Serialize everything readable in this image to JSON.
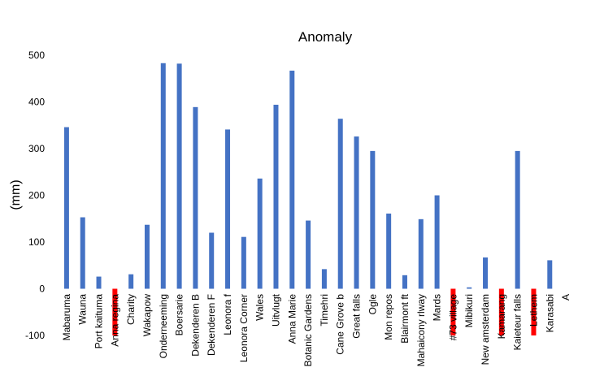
{
  "chart_data": {
    "type": "bar",
    "title": "Anomaly",
    "y_label": "(mm)",
    "categories": [
      "Mabaruma",
      "Wauna",
      "Port kaituma",
      "Anna regina",
      "Charity",
      "Wakapow",
      "Onderneeming",
      "Boersarie",
      "Dekenderen B",
      "Dekenderen F",
      "Leonora  f",
      "Leonora  Corner",
      "Wales",
      "Uitvlugt",
      "Anna Marie",
      "Botanic Gardens",
      "Timehri",
      "Cane Grove b",
      "Great falls",
      "Ogle",
      "Mon repos",
      "Blairmont ft",
      "Mahaicony rlway",
      "Mards",
      "#73 village",
      "Mibikuri",
      "New amsterdam",
      "Kamarang",
      "Kaieteur falls",
      "Lethem",
      "Karasabi",
      "A"
    ],
    "values": [
      346,
      153,
      26,
      -100,
      31,
      137,
      483,
      482,
      389,
      120,
      341,
      111,
      236,
      394,
      467,
      146,
      42,
      364,
      326,
      295,
      161,
      29,
      149,
      200,
      -100,
      3,
      67,
      -100,
      295,
      -100,
      61,
      null
    ],
    "colors": [
      "#4472c4",
      "#4472c4",
      "#4472c4",
      "#ff0000",
      "#4472c4",
      "#4472c4",
      "#4472c4",
      "#4472c4",
      "#4472c4",
      "#4472c4",
      "#4472c4",
      "#4472c4",
      "#4472c4",
      "#4472c4",
      "#4472c4",
      "#4472c4",
      "#4472c4",
      "#4472c4",
      "#4472c4",
      "#4472c4",
      "#4472c4",
      "#4472c4",
      "#4472c4",
      "#4472c4",
      "#ff0000",
      "#4472c4",
      "#4472c4",
      "#ff0000",
      "#4472c4",
      "#ff0000",
      "#4472c4",
      "#4472c4"
    ],
    "ylim": [
      -100,
      500
    ],
    "yticks": [
      -100,
      0,
      100,
      200,
      300,
      400,
      500
    ],
    "grid": false
  }
}
